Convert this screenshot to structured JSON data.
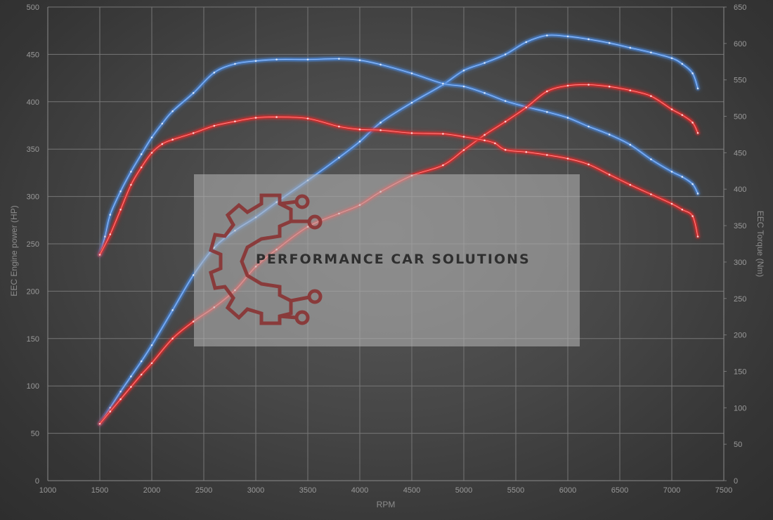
{
  "chart_data": {
    "type": "line",
    "xlabel": "RPM",
    "ylabel_left": "EEC Engine power (HP)",
    "ylabel_right": "EEC Torque (Nm)",
    "xlim": [
      1000,
      7500
    ],
    "ylim_left": [
      0,
      500
    ],
    "ylim_right": [
      0,
      650
    ],
    "x_ticks": [
      1000,
      1500,
      2000,
      2500,
      3000,
      3500,
      4000,
      4500,
      5000,
      5500,
      6000,
      6500,
      7000,
      7500
    ],
    "y_left_ticks": [
      0,
      50,
      100,
      150,
      200,
      250,
      300,
      350,
      400,
      450,
      500
    ],
    "y_right_ticks": [
      0,
      50,
      100,
      150,
      200,
      250,
      300,
      350,
      400,
      450,
      500,
      550,
      600,
      650
    ],
    "grid": true,
    "legend": "none",
    "series": [
      {
        "color": "#4a86d8",
        "axis": "left",
        "kind": "power",
        "x": [
          1500,
          1600,
          1700,
          1800,
          1900,
          2000,
          2200,
          2400,
          2600,
          2800,
          3000,
          3200,
          3500,
          3800,
          4000,
          4200,
          4500,
          4800,
          5000,
          5200,
          5400,
          5600,
          5800,
          6000,
          6200,
          6400,
          6600,
          6800,
          7000,
          7100,
          7200,
          7250
        ],
        "y": [
          60,
          77,
          94,
          110,
          126,
          143,
          180,
          217,
          246,
          264,
          278,
          294,
          317,
          341,
          358,
          378,
          399,
          418,
          433,
          441,
          450,
          463,
          470,
          469,
          466,
          462,
          457,
          452,
          446,
          440,
          430,
          414
        ]
      },
      {
        "color": "#4a86d8",
        "axis": "right",
        "kind": "torque",
        "x": [
          1500,
          1550,
          1600,
          1700,
          1800,
          1900,
          2000,
          2100,
          2200,
          2400,
          2600,
          2800,
          3000,
          3200,
          3500,
          3800,
          4000,
          4200,
          4500,
          4800,
          5000,
          5200,
          5400,
          5600,
          5800,
          6000,
          6200,
          6400,
          6600,
          6800,
          7000,
          7100,
          7200,
          7250
        ],
        "y": [
          310,
          335,
          365,
          397,
          424,
          448,
          471,
          490,
          507,
          532,
          560,
          572,
          576,
          578,
          578,
          579,
          577,
          571,
          559,
          545,
          541,
          532,
          521,
          513,
          506,
          498,
          486,
          475,
          461,
          441,
          424,
          417,
          407,
          394
        ]
      },
      {
        "color": "#e02d2d",
        "axis": "left",
        "kind": "power",
        "x": [
          1500,
          1600,
          1700,
          1800,
          1900,
          2000,
          2200,
          2400,
          2600,
          2800,
          3000,
          3200,
          3500,
          3800,
          4000,
          4200,
          4500,
          4800,
          5000,
          5200,
          5400,
          5600,
          5800,
          6000,
          6200,
          6400,
          6600,
          6800,
          7000,
          7100,
          7200,
          7250
        ],
        "y": [
          60,
          73,
          86,
          99,
          112,
          124,
          150,
          168,
          183,
          201,
          226,
          244,
          268,
          282,
          291,
          305,
          322,
          333,
          349,
          365,
          379,
          394,
          411,
          417,
          418,
          416,
          412,
          406,
          392,
          386,
          378,
          367
        ]
      },
      {
        "color": "#e02d2d",
        "axis": "right",
        "kind": "torque",
        "x": [
          1500,
          1600,
          1700,
          1800,
          1900,
          2000,
          2100,
          2200,
          2400,
          2600,
          2800,
          3000,
          3200,
          3500,
          3800,
          4000,
          4200,
          4500,
          4800,
          5000,
          5200,
          5300,
          5400,
          5600,
          5800,
          6000,
          6200,
          6400,
          6600,
          6800,
          7000,
          7100,
          7200,
          7250
        ],
        "y": [
          310,
          338,
          372,
          406,
          430,
          450,
          462,
          468,
          477,
          487,
          493,
          498,
          499,
          497,
          486,
          482,
          481,
          477,
          476,
          472,
          467,
          463,
          454,
          451,
          447,
          442,
          434,
          420,
          406,
          393,
          380,
          372,
          363,
          335
        ]
      }
    ]
  },
  "watermark": {
    "text": "PERFORMANCE CAR SOLUTIONS",
    "icon": "gear-circuit-logo",
    "accent": "#8a2e2e"
  }
}
